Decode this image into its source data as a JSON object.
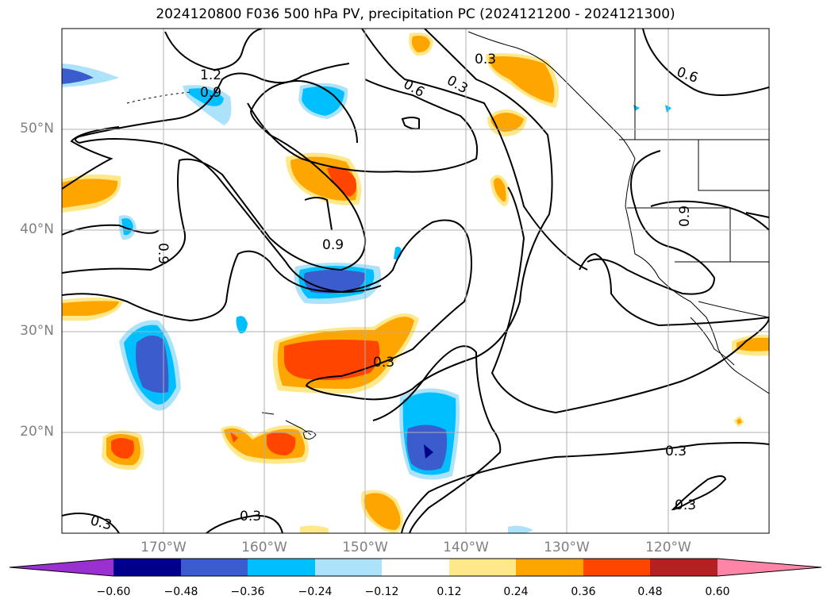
{
  "title": "2024120800 F036 500 hPa PV, precipitation PC (2024121200 - 2024121300)",
  "lat_labels": [
    "50°N",
    "40°N",
    "30°N",
    "20°N"
  ],
  "lon_labels": [
    "170°W",
    "160°W",
    "150°W",
    "140°W",
    "130°W",
    "120°W"
  ],
  "contour_labels": [
    "1.2",
    "0.9",
    "0.6",
    "0.3",
    "0.3",
    "0.6",
    "0.9",
    "0.9",
    "0.3",
    "0.3",
    "0.3",
    "0.3",
    "0.3",
    "0.9"
  ],
  "colorbar": {
    "ticks": [
      "−0.60",
      "−0.48",
      "−0.36",
      "−0.24",
      "−0.12",
      "0.12",
      "0.24",
      "0.36",
      "0.48",
      "0.60"
    ],
    "colors": [
      "#9b30d0",
      "#00008b",
      "#3a5ccc",
      "#00bfff",
      "#ade2fb",
      "#ffffff",
      "#ffe88a",
      "#ffa500",
      "#ff4500",
      "#b22222",
      "#ff85a8"
    ]
  },
  "fill_colors": {
    "neg_light": "#ade2fb",
    "neg_mid": "#00bfff",
    "neg_strong": "#3a5ccc",
    "neg_max": "#00008b",
    "pos_light": "#ffe88a",
    "pos_mid": "#ffa500",
    "pos_strong": "#ff4500"
  }
}
